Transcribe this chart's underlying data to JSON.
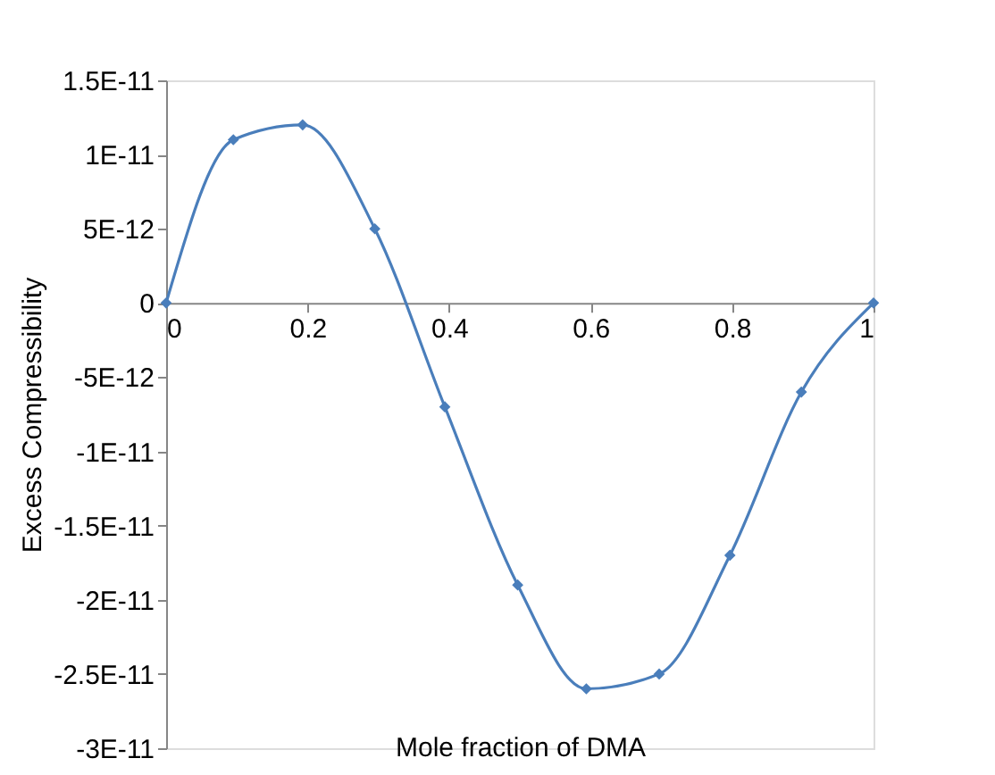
{
  "chart_data": {
    "type": "line",
    "xlabel": "Mole fraction of DMA",
    "ylabel": "Excess Compressibility",
    "x": [
      0,
      0.095,
      0.193,
      0.295,
      0.394,
      0.497,
      0.594,
      0.697,
      0.797,
      0.898,
      1
    ],
    "series": [
      {
        "color": "#4a7ebb",
        "values": [
          0,
          1.1e-11,
          1.2e-11,
          5e-12,
          -7e-12,
          -1.9e-11,
          -2.6e-11,
          -2.5e-11,
          -1.7e-11,
          -6e-12,
          0
        ]
      }
    ],
    "marker": "diamond",
    "line_style": "solid",
    "grid": false,
    "legend": false,
    "xlim": [
      0,
      1
    ],
    "xticks": [
      0,
      0.2,
      0.4,
      0.6,
      0.8,
      1
    ],
    "ylim": [
      -3e-11,
      1.5e-11
    ],
    "yticks": [
      {
        "value": 1.5e-11,
        "label": "1.5E-11"
      },
      {
        "value": 1e-11,
        "label": "1E-11"
      },
      {
        "value": 5e-12,
        "label": "5E-12"
      },
      0,
      {
        "value": -5e-12,
        "label": "-5E-12"
      },
      {
        "value": -1e-11,
        "label": "-1E-11"
      },
      {
        "value": -1.5e-11,
        "label": "-1.5E-11"
      },
      {
        "value": -2e-11,
        "label": "-2E-11"
      },
      {
        "value": -2.5e-11,
        "label": "-2.5E-11"
      },
      {
        "value": -3e-11,
        "label": "-3E-11"
      }
    ]
  }
}
